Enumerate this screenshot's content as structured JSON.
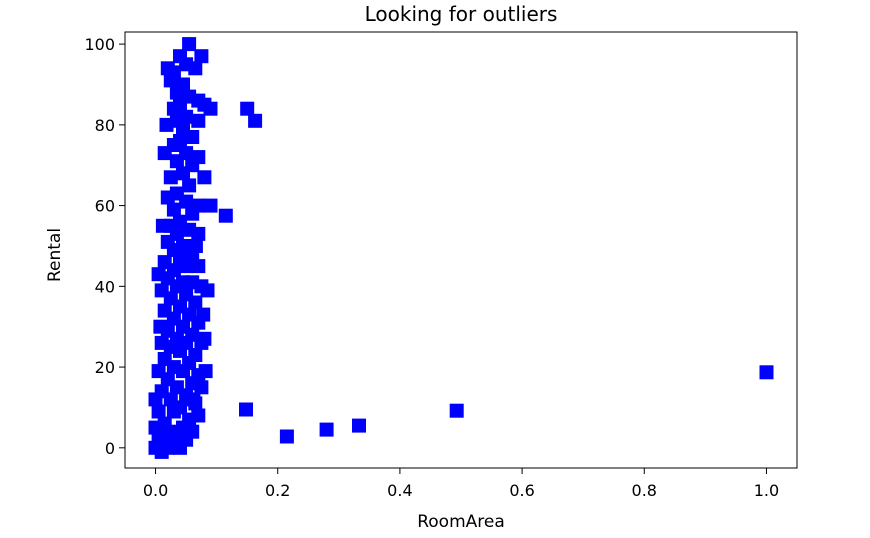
{
  "chart_data": {
    "type": "scatter",
    "title": "Looking for outliers",
    "xlabel": "RoomArea",
    "ylabel": "Rental",
    "xlim": [
      -0.05,
      1.05
    ],
    "ylim": [
      -5,
      103
    ],
    "xticks": [
      0.0,
      0.2,
      0.4,
      0.6,
      0.8,
      1.0
    ],
    "xtick_labels": [
      "0.0",
      "0.2",
      "0.4",
      "0.6",
      "0.8",
      "1.0"
    ],
    "yticks": [
      0,
      20,
      40,
      60,
      80,
      100
    ],
    "ytick_labels": [
      "0",
      "20",
      "40",
      "60",
      "80",
      "100"
    ],
    "grid": false,
    "marker": "square",
    "marker_color": "#0000ff",
    "points": [
      {
        "x": 0.055,
        "y": 100
      },
      {
        "x": 0.04,
        "y": 97
      },
      {
        "x": 0.075,
        "y": 97
      },
      {
        "x": 0.05,
        "y": 95
      },
      {
        "x": 0.02,
        "y": 94
      },
      {
        "x": 0.03,
        "y": 93
      },
      {
        "x": 0.065,
        "y": 94
      },
      {
        "x": 0.025,
        "y": 91
      },
      {
        "x": 0.045,
        "y": 90
      },
      {
        "x": 0.035,
        "y": 88
      },
      {
        "x": 0.055,
        "y": 87
      },
      {
        "x": 0.07,
        "y": 86
      },
      {
        "x": 0.08,
        "y": 85
      },
      {
        "x": 0.04,
        "y": 85
      },
      {
        "x": 0.03,
        "y": 84
      },
      {
        "x": 0.09,
        "y": 84
      },
      {
        "x": 0.15,
        "y": 84
      },
      {
        "x": 0.05,
        "y": 82
      },
      {
        "x": 0.035,
        "y": 81
      },
      {
        "x": 0.07,
        "y": 81
      },
      {
        "x": 0.163,
        "y": 81
      },
      {
        "x": 0.045,
        "y": 79
      },
      {
        "x": 0.06,
        "y": 77
      },
      {
        "x": 0.04,
        "y": 76
      },
      {
        "x": 0.03,
        "y": 75
      },
      {
        "x": 0.015,
        "y": 73
      },
      {
        "x": 0.05,
        "y": 73
      },
      {
        "x": 0.07,
        "y": 72
      },
      {
        "x": 0.035,
        "y": 71
      },
      {
        "x": 0.06,
        "y": 70
      },
      {
        "x": 0.045,
        "y": 68
      },
      {
        "x": 0.025,
        "y": 67
      },
      {
        "x": 0.08,
        "y": 67
      },
      {
        "x": 0.055,
        "y": 65
      },
      {
        "x": 0.035,
        "y": 63
      },
      {
        "x": 0.02,
        "y": 62
      },
      {
        "x": 0.05,
        "y": 61
      },
      {
        "x": 0.07,
        "y": 60
      },
      {
        "x": 0.09,
        "y": 60
      },
      {
        "x": 0.03,
        "y": 59
      },
      {
        "x": 0.06,
        "y": 58
      },
      {
        "x": 0.115,
        "y": 57.5
      },
      {
        "x": 0.04,
        "y": 56
      },
      {
        "x": 0.025,
        "y": 55
      },
      {
        "x": 0.055,
        "y": 54
      },
      {
        "x": 0.035,
        "y": 53
      },
      {
        "x": 0.07,
        "y": 53
      },
      {
        "x": 0.02,
        "y": 51
      },
      {
        "x": 0.045,
        "y": 50
      },
      {
        "x": 0.03,
        "y": 49
      },
      {
        "x": 0.06,
        "y": 48
      },
      {
        "x": 0.04,
        "y": 47
      },
      {
        "x": 0.015,
        "y": 46
      },
      {
        "x": 0.05,
        "y": 45
      },
      {
        "x": 0.07,
        "y": 45
      },
      {
        "x": 0.03,
        "y": 44
      },
      {
        "x": 0.005,
        "y": 43
      },
      {
        "x": 0.02,
        "y": 42
      },
      {
        "x": 0.045,
        "y": 41
      },
      {
        "x": 0.06,
        "y": 41
      },
      {
        "x": 0.035,
        "y": 40
      },
      {
        "x": 0.075,
        "y": 40
      },
      {
        "x": 0.085,
        "y": 39
      },
      {
        "x": 0.01,
        "y": 39
      },
      {
        "x": 0.05,
        "y": 38
      },
      {
        "x": 0.025,
        "y": 37
      },
      {
        "x": 0.065,
        "y": 36
      },
      {
        "x": 0.04,
        "y": 35
      },
      {
        "x": 0.015,
        "y": 34
      },
      {
        "x": 0.055,
        "y": 33
      },
      {
        "x": 0.03,
        "y": 32
      },
      {
        "x": 0.07,
        "y": 31
      },
      {
        "x": 0.045,
        "y": 30
      },
      {
        "x": 0.02,
        "y": 29
      },
      {
        "x": 0.06,
        "y": 28
      },
      {
        "x": 0.035,
        "y": 27
      },
      {
        "x": 0.01,
        "y": 26
      },
      {
        "x": 0.05,
        "y": 26
      },
      {
        "x": 0.075,
        "y": 26
      },
      {
        "x": 0.025,
        "y": 25
      },
      {
        "x": 0.04,
        "y": 24
      },
      {
        "x": 0.065,
        "y": 23
      },
      {
        "x": 0.015,
        "y": 22
      },
      {
        "x": 0.055,
        "y": 21
      },
      {
        "x": 0.03,
        "y": 20
      },
      {
        "x": 0.005,
        "y": 19
      },
      {
        "x": 0.045,
        "y": 19
      },
      {
        "x": 0.07,
        "y": 18
      },
      {
        "x": 0.02,
        "y": 17
      },
      {
        "x": 0.06,
        "y": 16
      },
      {
        "x": 0.035,
        "y": 15
      },
      {
        "x": 0.075,
        "y": 15
      },
      {
        "x": 0.01,
        "y": 14
      },
      {
        "x": 0.05,
        "y": 13
      },
      {
        "x": 0.025,
        "y": 12
      },
      {
        "x": 0.065,
        "y": 11
      },
      {
        "x": 0.04,
        "y": 10
      },
      {
        "x": 0.005,
        "y": 9
      },
      {
        "x": 0.03,
        "y": 9
      },
      {
        "x": 0.07,
        "y": 8
      },
      {
        "x": 0.055,
        "y": 7
      },
      {
        "x": 0.015,
        "y": 6
      },
      {
        "x": 0.045,
        "y": 5
      },
      {
        "x": 0.025,
        "y": 4
      },
      {
        "x": 0.06,
        "y": 4
      },
      {
        "x": 0.005,
        "y": 3
      },
      {
        "x": 0.035,
        "y": 2
      },
      {
        "x": 0.05,
        "y": 2
      },
      {
        "x": 0.015,
        "y": 1
      },
      {
        "x": 0.03,
        "y": 1
      },
      {
        "x": 0.0,
        "y": 0
      },
      {
        "x": 0.02,
        "y": 0
      },
      {
        "x": 0.04,
        "y": 0
      },
      {
        "x": 0.01,
        "y": -1
      },
      {
        "x": 0.0,
        "y": 5
      },
      {
        "x": 0.0,
        "y": 12
      },
      {
        "x": 0.008,
        "y": 30
      },
      {
        "x": 0.012,
        "y": 55
      },
      {
        "x": 0.018,
        "y": 80
      },
      {
        "x": 0.062,
        "y": 12
      },
      {
        "x": 0.082,
        "y": 19
      },
      {
        "x": 0.08,
        "y": 27
      },
      {
        "x": 0.078,
        "y": 33
      },
      {
        "x": 0.066,
        "y": 50
      },
      {
        "x": 0.148,
        "y": 9.5
      },
      {
        "x": 0.215,
        "y": 2.8
      },
      {
        "x": 0.28,
        "y": 4.5
      },
      {
        "x": 0.333,
        "y": 5.5
      },
      {
        "x": 0.493,
        "y": 9.2
      },
      {
        "x": 1.0,
        "y": 18.7
      }
    ]
  }
}
